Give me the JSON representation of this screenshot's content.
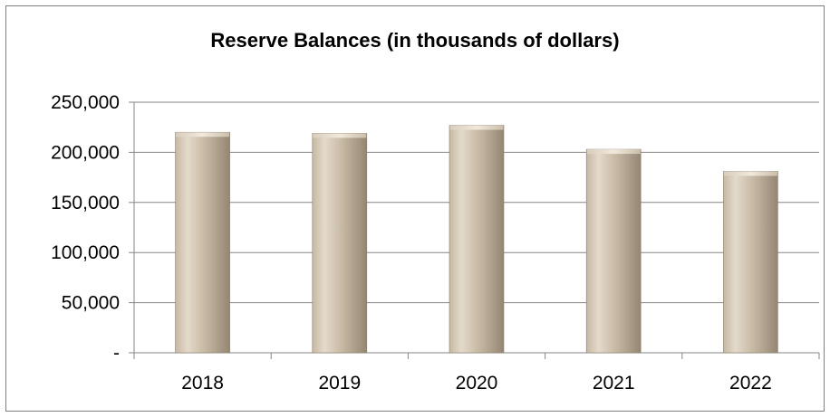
{
  "chart_data": {
    "type": "bar",
    "title": "Reserve Balances (in thousands of dollars)",
    "categories": [
      "2018",
      "2019",
      "2020",
      "2021",
      "2022"
    ],
    "values": [
      220000,
      219000,
      227000,
      203000,
      181000
    ],
    "ylim": [
      0,
      250000
    ],
    "yticks": [
      0,
      50000,
      100000,
      150000,
      200000,
      250000
    ],
    "ytick_labels": [
      "-",
      "50,000",
      "100,000",
      "150,000",
      "200,000",
      "250,000"
    ],
    "xlabel": "",
    "ylabel": "",
    "grid": true,
    "legend": "none",
    "colors": {
      "bar_light": "#e4dacb",
      "bar_mid": "#c6b8a3",
      "bar_dark": "#948673",
      "grid": "#868686",
      "frame": "#7f7f7f"
    }
  }
}
